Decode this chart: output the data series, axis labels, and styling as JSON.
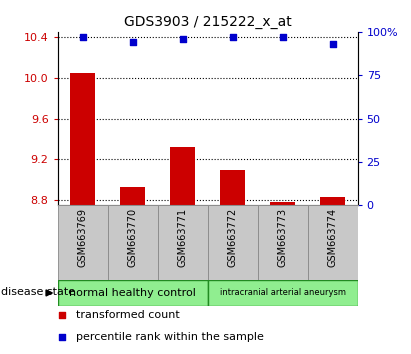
{
  "title": "GDS3903 / 215222_x_at",
  "samples": [
    "GSM663769",
    "GSM663770",
    "GSM663771",
    "GSM663772",
    "GSM663773",
    "GSM663774"
  ],
  "bar_values": [
    10.05,
    8.93,
    9.32,
    9.1,
    8.78,
    8.83
  ],
  "percentile_values": [
    97,
    94,
    96,
    97,
    97,
    93
  ],
  "bar_bottom": 8.75,
  "ylim_left": [
    8.75,
    10.45
  ],
  "ylim_right": [
    0,
    100
  ],
  "yticks_left": [
    8.8,
    9.2,
    9.6,
    10.0,
    10.4
  ],
  "yticks_right": [
    0,
    25,
    50,
    75,
    100
  ],
  "bar_color": "#cc0000",
  "dot_color": "#0000cc",
  "group1_label": "normal healthy control",
  "group2_label": "intracranial arterial aneurysm",
  "group1_color": "#90ee90",
  "group2_color": "#90ee90",
  "group1_samples": [
    0,
    1,
    2
  ],
  "group2_samples": [
    3,
    4,
    5
  ],
  "disease_state_label": "disease state",
  "legend_bar_label": "transformed count",
  "legend_dot_label": "percentile rank within the sample",
  "tick_label_color_left": "#cc0000",
  "tick_label_color_right": "#0000cc",
  "sample_box_color": "#c8c8c8",
  "sample_box_edge": "#888888"
}
